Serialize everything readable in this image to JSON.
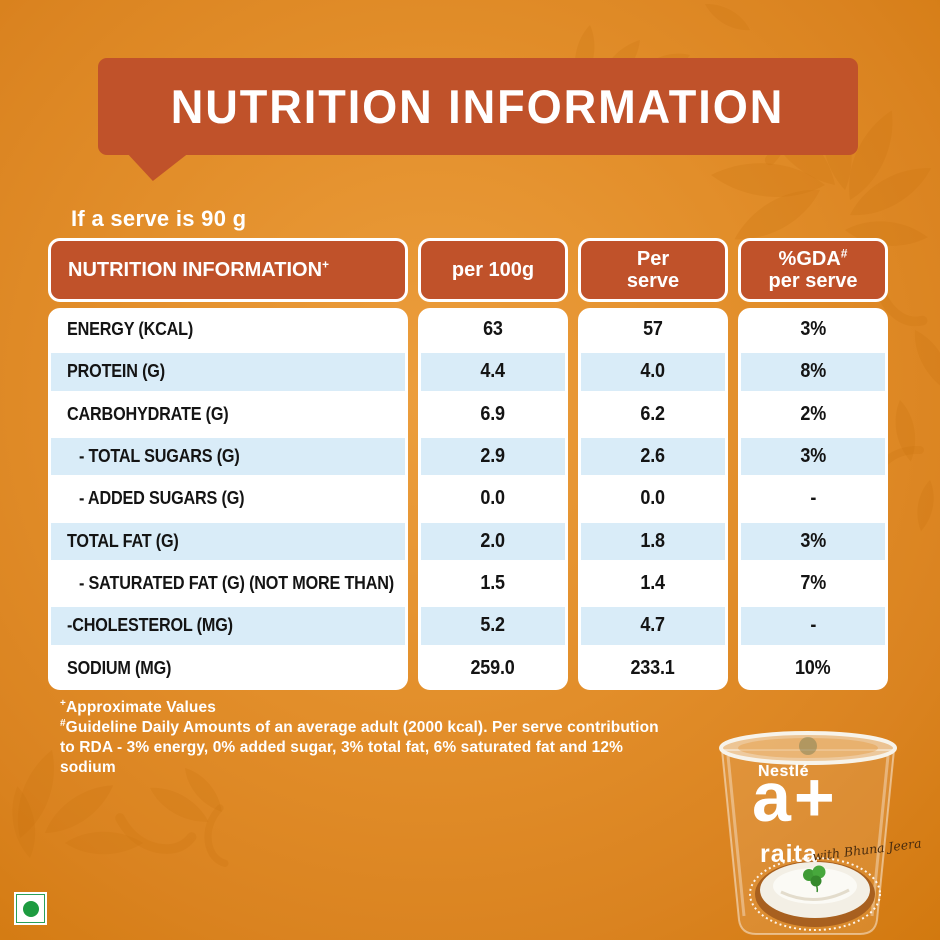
{
  "banner": {
    "title": "NUTRITION INFORMATION"
  },
  "serve_note": "If a serve is 90 g",
  "table": {
    "header": {
      "col1": "NUTRITION INFORMATION",
      "col1_sup": "+",
      "col2": "per 100g",
      "col3_line1": "Per",
      "col3_line2": "serve",
      "col4_line1": "%GDA",
      "col4_sup": "#",
      "col4_line2": "per serve"
    },
    "rows": [
      {
        "label": "ENERGY (KCAL)",
        "indent": false,
        "per_100g": "63",
        "per_serve": "57",
        "gda": "3%"
      },
      {
        "label": "PROTEIN (G)",
        "indent": false,
        "per_100g": "4.4",
        "per_serve": "4.0",
        "gda": "8%"
      },
      {
        "label": "CARBOHYDRATE (G)",
        "indent": false,
        "per_100g": "6.9",
        "per_serve": "6.2",
        "gda": "2%"
      },
      {
        "label": "- TOTAL SUGARS (G)",
        "indent": true,
        "per_100g": "2.9",
        "per_serve": "2.6",
        "gda": "3%"
      },
      {
        "label": "- ADDED SUGARS (G)",
        "indent": true,
        "per_100g": "0.0",
        "per_serve": "0.0",
        "gda": "-"
      },
      {
        "label": "TOTAL FAT (G)",
        "indent": false,
        "per_100g": "2.0",
        "per_serve": "1.8",
        "gda": "3%"
      },
      {
        "label": "- SATURATED FAT (G) (NOT MORE THAN)",
        "indent": true,
        "per_100g": "1.5",
        "per_serve": "1.4",
        "gda": "7%"
      },
      {
        "label": "-CHOLESTEROL (MG)",
        "indent": false,
        "per_100g": "5.2",
        "per_serve": "4.7",
        "gda": "-"
      },
      {
        "label": "SODIUM (MG)",
        "indent": false,
        "per_100g": "259.0",
        "per_serve": "233.1",
        "gda": "10%"
      }
    ]
  },
  "footnotes": {
    "line1_sup": "+",
    "line1": "Approximate Values",
    "line2_sup": "#",
    "line2": "Guideline Daily Amounts of an average adult (2000 kcal). Per serve contribution to RDA - 3% energy, 0% added sugar, 3% total fat, 6% saturated fat and 12% sodium"
  },
  "product": {
    "brand": "Nestlé",
    "logo": "a+",
    "name": "raita",
    "tagline": "with Bhuna Jeera"
  },
  "icons": {
    "veg_mark": "green-dot-vegetarian-mark",
    "pattern": "floral-paisley-motif"
  },
  "colors": {
    "background": "#e28e2a",
    "banner": "#c0522a",
    "row_alt_blue": "#d9ecf8",
    "text_dark": "#141414",
    "text_light": "#ffffff",
    "veg_green": "#1d9b40",
    "pattern_orange": "#c97410"
  }
}
